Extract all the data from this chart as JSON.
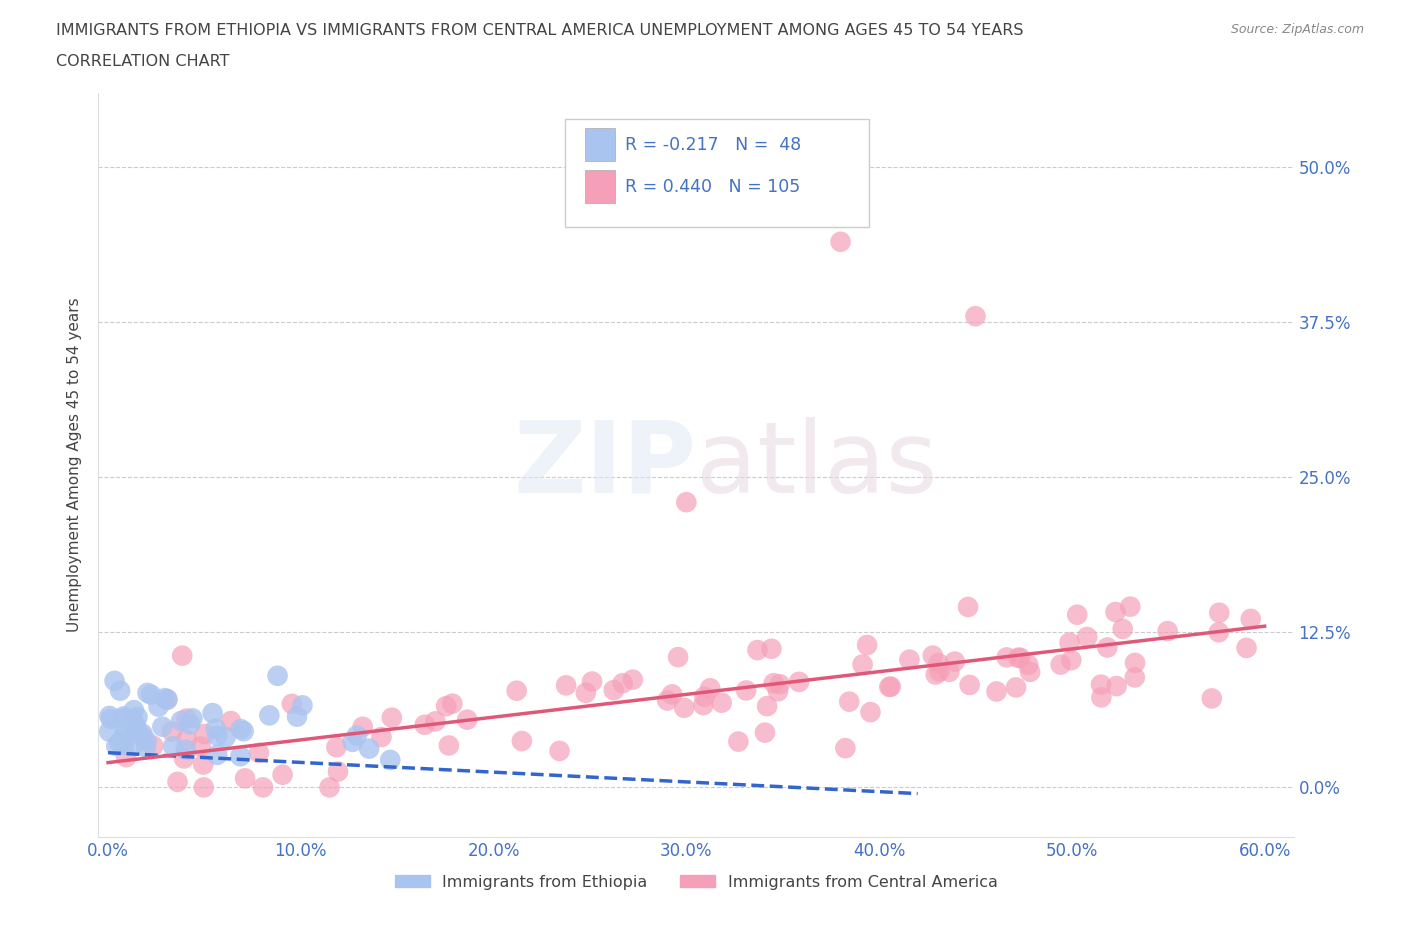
{
  "title_line1": "IMMIGRANTS FROM ETHIOPIA VS IMMIGRANTS FROM CENTRAL AMERICA UNEMPLOYMENT AMONG AGES 45 TO 54 YEARS",
  "title_line2": "CORRELATION CHART",
  "source": "Source: ZipAtlas.com",
  "ylabel": "Unemployment Among Ages 45 to 54 years",
  "xlim": [
    -0.005,
    0.615
  ],
  "ylim": [
    -0.04,
    0.56
  ],
  "yticks": [
    0.0,
    0.125,
    0.25,
    0.375,
    0.5
  ],
  "ytick_labels": [
    "0.0%",
    "12.5%",
    "25.0%",
    "37.5%",
    "50.0%"
  ],
  "xticks": [
    0.0,
    0.1,
    0.2,
    0.3,
    0.4,
    0.5,
    0.6
  ],
  "xtick_labels": [
    "0.0%",
    "10.0%",
    "20.0%",
    "30.0%",
    "40.0%",
    "50.0%",
    "60.0%"
  ],
  "ethiopia_color": "#aac4f0",
  "ethiopia_line_color": "#3366cc",
  "central_america_color": "#f5a0b8",
  "central_america_line_color": "#e05878",
  "R_ethiopia": -0.217,
  "N_ethiopia": 48,
  "R_central_america": 0.44,
  "N_central_america": 105,
  "watermark_zip": "ZIP",
  "watermark_atlas": "atlas",
  "legend_label_ethiopia": "Immigrants from Ethiopia",
  "legend_label_central_america": "Immigrants from Central America",
  "title_color": "#444444",
  "axis_label_color": "#444444",
  "tick_color": "#4472c4",
  "grid_color": "#cccccc",
  "stat_text_color": "#4472c4",
  "source_color": "#888888"
}
